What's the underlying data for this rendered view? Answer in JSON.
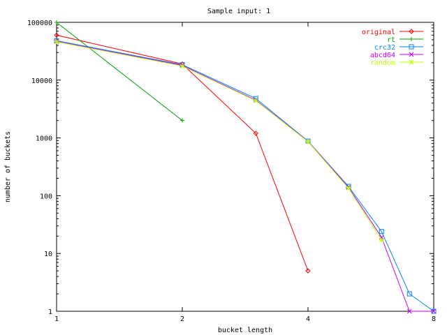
{
  "chart_data": {
    "type": "line",
    "title": "Sample input: 1",
    "xlabel": "bucket length",
    "ylabel": "number of buckets",
    "x_scale": "log2",
    "y_scale": "log10",
    "xlim": [
      1,
      8
    ],
    "ylim": [
      1,
      100000
    ],
    "x_ticks": [
      1,
      2,
      4,
      8
    ],
    "x_tick_labels": [
      "1",
      "2",
      "4",
      "8"
    ],
    "y_ticks": [
      1,
      10,
      100,
      1000,
      10000,
      100000
    ],
    "y_tick_labels": [
      "1",
      "10",
      "100",
      "1000",
      "10000",
      "100000"
    ],
    "grid": false,
    "legend_position": "top-right",
    "series": [
      {
        "name": "original",
        "color": "#ff0000",
        "marker": "diamond",
        "points": [
          [
            1,
            60000
          ],
          [
            2,
            19000
          ],
          [
            3,
            1200
          ],
          [
            4,
            5
          ]
        ]
      },
      {
        "name": "rt",
        "color": "#00a000",
        "marker": "plus",
        "points": [
          [
            1,
            100000
          ],
          [
            2,
            2000
          ]
        ]
      },
      {
        "name": "crc32",
        "color": "#0080ff",
        "marker": "square",
        "points": [
          [
            1,
            48000
          ],
          [
            2,
            18500
          ],
          [
            3,
            4800
          ],
          [
            4,
            880
          ],
          [
            5,
            145
          ],
          [
            6,
            24
          ],
          [
            7,
            2
          ],
          [
            8,
            1
          ]
        ]
      },
      {
        "name": "abcd64",
        "color": "#c000ff",
        "marker": "x",
        "points": [
          [
            1,
            47000
          ],
          [
            2,
            18000
          ],
          [
            3,
            4500
          ],
          [
            4,
            870
          ],
          [
            5,
            140
          ],
          [
            6,
            19
          ],
          [
            7,
            1
          ],
          [
            8,
            1
          ]
        ]
      },
      {
        "name": "random",
        "color": "#c0ff00",
        "marker": "star",
        "points": [
          [
            1,
            46000
          ],
          [
            2,
            17500
          ],
          [
            3,
            4400
          ],
          [
            4,
            860
          ],
          [
            5,
            135
          ],
          [
            6,
            17
          ]
        ]
      }
    ]
  }
}
